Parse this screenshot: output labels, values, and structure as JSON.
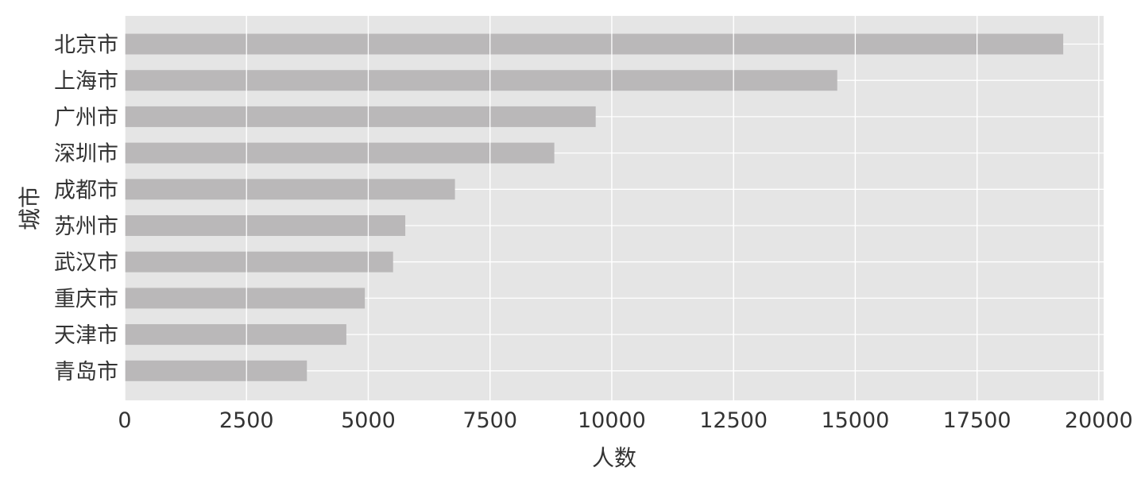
{
  "chart_data": {
    "type": "bar",
    "orientation": "horizontal",
    "categories": [
      "北京市",
      "上海市",
      "广州市",
      "深圳市",
      "成都市",
      "苏州市",
      "武汉市",
      "重庆市",
      "天津市",
      "青岛市"
    ],
    "values": [
      19270,
      14630,
      9670,
      8820,
      6780,
      5760,
      5510,
      4930,
      4550,
      3740
    ],
    "xlabel": "人数",
    "ylabel": "城市",
    "xlim": [
      0,
      20100
    ],
    "xticks": [
      0,
      2500,
      5000,
      7500,
      10000,
      12500,
      15000,
      17500,
      20000
    ],
    "grid": true,
    "legend": "none",
    "colors": {
      "background": "#e5e5e5",
      "bar": "#bab8b9",
      "grid": "#ffffff",
      "text": "#333333"
    }
  }
}
